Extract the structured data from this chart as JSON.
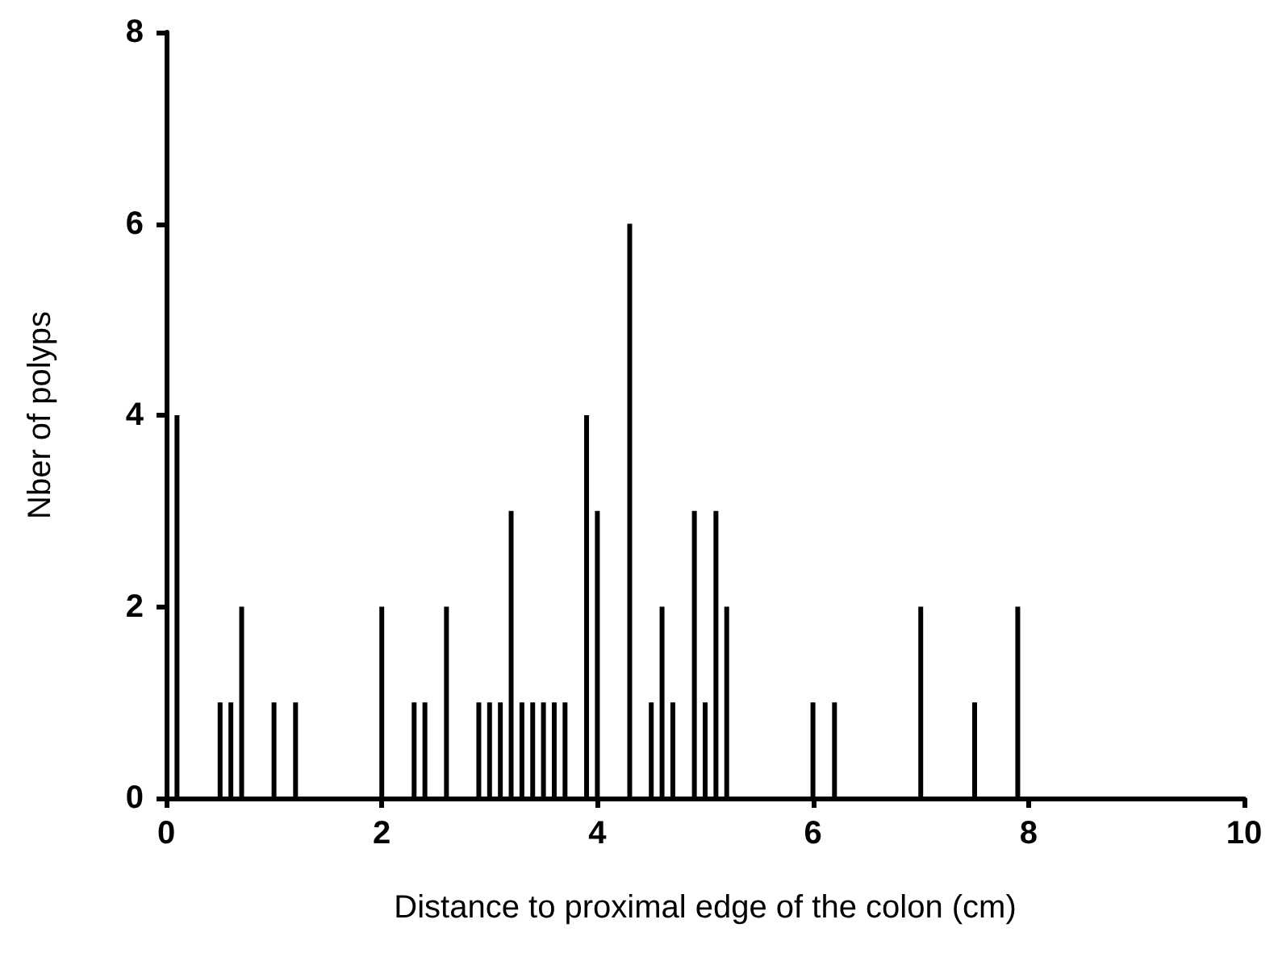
{
  "chart_data": {
    "type": "bar",
    "xlabel": "Distance to proximal edge of the colon (cm)",
    "ylabel": "Nber of polyps",
    "x": [
      0.1,
      0.5,
      0.6,
      0.7,
      1.0,
      1.2,
      2.0,
      2.3,
      2.4,
      2.6,
      2.9,
      3.0,
      3.1,
      3.2,
      3.3,
      3.4,
      3.5,
      3.6,
      3.7,
      3.9,
      4.0,
      4.3,
      4.5,
      4.6,
      4.7,
      4.9,
      5.0,
      5.1,
      5.2,
      6.0,
      6.2,
      7.0,
      7.5,
      7.9
    ],
    "values": [
      4,
      1,
      1,
      2,
      1,
      1,
      2,
      1,
      1,
      2,
      1,
      1,
      1,
      3,
      1,
      1,
      1,
      1,
      1,
      4,
      3,
      6,
      1,
      2,
      1,
      3,
      1,
      3,
      2,
      1,
      1,
      2,
      1,
      2
    ],
    "color": "#000000",
    "xlim": [
      0,
      10
    ],
    "xticks": [
      0,
      2,
      4,
      6,
      8,
      10
    ],
    "ylim": [
      0,
      8
    ],
    "yticks": [
      0,
      2,
      4,
      6,
      8
    ],
    "grid": false
  }
}
